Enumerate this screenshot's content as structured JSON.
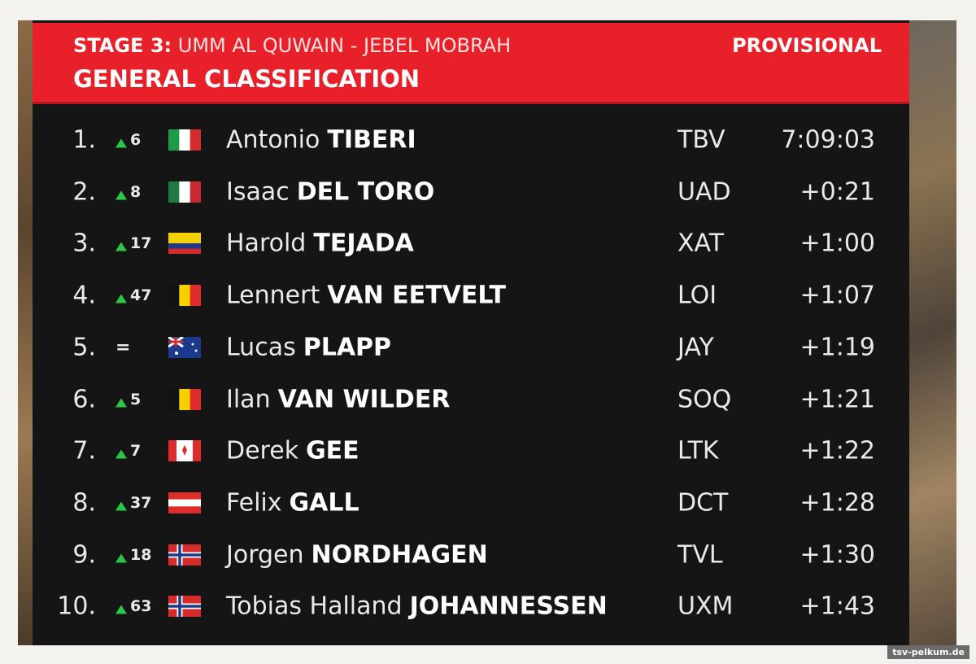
{
  "header": {
    "stage": "STAGE 3:",
    "route": "UMM AL QUWAIN - JEBEL MOBRAH",
    "status": "PROVISIONAL",
    "title": "GENERAL CLASSIFICATION"
  },
  "rows": [
    {
      "rank": "1.",
      "trend": "up",
      "change": "6",
      "first": "Antonio",
      "last": "TIBERI",
      "team": "TBV",
      "time": "7:09:03"
    },
    {
      "rank": "2.",
      "trend": "up",
      "change": "8",
      "first": "Isaac",
      "last": "DEL TORO",
      "team": "UAD",
      "time": "+0:21"
    },
    {
      "rank": "3.",
      "trend": "up",
      "change": "17",
      "first": "Harold",
      "last": "TEJADA",
      "team": "XAT",
      "time": "+1:00"
    },
    {
      "rank": "4.",
      "trend": "up",
      "change": "47",
      "first": "Lennert",
      "last": "VAN EETVELT",
      "team": "LOI",
      "time": "+1:07"
    },
    {
      "rank": "5.",
      "trend": "same",
      "change": "=",
      "first": "Lucas",
      "last": "PLAPP",
      "team": "JAY",
      "time": "+1:19"
    },
    {
      "rank": "6.",
      "trend": "up",
      "change": "5",
      "first": "Ilan",
      "last": "VAN WILDER",
      "team": "SOQ",
      "time": "+1:21"
    },
    {
      "rank": "7.",
      "trend": "up",
      "change": "7",
      "first": "Derek",
      "last": "GEE",
      "team": "LTK",
      "time": "+1:22"
    },
    {
      "rank": "8.",
      "trend": "up",
      "change": "37",
      "first": "Felix",
      "last": "GALL",
      "team": "DCT",
      "time": "+1:28"
    },
    {
      "rank": "9.",
      "trend": "up",
      "change": "18",
      "first": "Jorgen",
      "last": "NORDHAGEN",
      "team": "TVL",
      "time": "+1:30"
    },
    {
      "rank": "10.",
      "trend": "up",
      "change": "63",
      "first": "Tobias Halland",
      "last": "JOHANNESSEN",
      "team": "UXM",
      "time": "+1:43"
    }
  ],
  "watermark": "tsv-pelkum.de"
}
